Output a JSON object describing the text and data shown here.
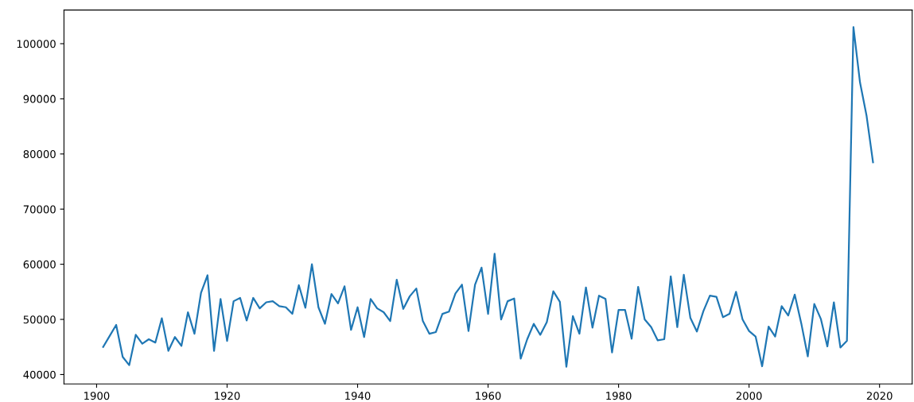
{
  "chart_data": {
    "type": "line",
    "x": [
      1901,
      1902,
      1903,
      1904,
      1905,
      1906,
      1907,
      1908,
      1909,
      1910,
      1911,
      1912,
      1913,
      1914,
      1915,
      1916,
      1917,
      1918,
      1919,
      1920,
      1921,
      1922,
      1923,
      1924,
      1925,
      1926,
      1927,
      1928,
      1929,
      1930,
      1931,
      1932,
      1933,
      1934,
      1935,
      1936,
      1937,
      1938,
      1939,
      1940,
      1941,
      1942,
      1943,
      1944,
      1945,
      1946,
      1947,
      1948,
      1949,
      1950,
      1951,
      1952,
      1953,
      1954,
      1955,
      1956,
      1957,
      1958,
      1959,
      1960,
      1961,
      1962,
      1963,
      1964,
      1965,
      1966,
      1967,
      1968,
      1969,
      1970,
      1971,
      1972,
      1973,
      1974,
      1975,
      1976,
      1977,
      1978,
      1979,
      1980,
      1981,
      1982,
      1983,
      1984,
      1985,
      1986,
      1987,
      1988,
      1989,
      1990,
      1991,
      1992,
      1993,
      1994,
      1995,
      1996,
      1997,
      1998,
      1999,
      2000,
      2001,
      2002,
      2003,
      2004,
      2005,
      2006,
      2007,
      2008,
      2009,
      2010,
      2011,
      2012,
      2013,
      2014,
      2015,
      2016,
      2017,
      2018,
      2019
    ],
    "series": [
      {
        "color": "#1f77b4",
        "values": [
          45000,
          47000,
          49000,
          43200,
          41700,
          47200,
          45600,
          46400,
          45800,
          50200,
          44300,
          46800,
          45200,
          51300,
          47400,
          54800,
          58000,
          44300,
          53700,
          46100,
          53300,
          53900,
          49800,
          53900,
          52000,
          53100,
          53300,
          52400,
          52200,
          51000,
          56200,
          52100,
          60000,
          52200,
          49200,
          54600,
          52900,
          56000,
          48100,
          52200,
          46800,
          53700,
          52000,
          51300,
          49700,
          57200,
          51900,
          54200,
          55600,
          49700,
          47400,
          47700,
          51000,
          51400,
          54700,
          56300,
          47900,
          56300,
          59400,
          51000,
          61900,
          50000,
          53300,
          53800,
          42900,
          46400,
          49200,
          47200,
          49500,
          55100,
          53200,
          41400,
          50600,
          47400,
          55800,
          48500,
          54300,
          53700,
          44000,
          51700,
          51700,
          46500,
          55900,
          50000,
          48600,
          46200,
          46400,
          57800,
          48600,
          58100,
          50300,
          47800,
          51500,
          54300,
          54100,
          50400,
          51000,
          55000,
          50000,
          47900,
          46900,
          41500,
          48700,
          46900,
          52400,
          50700,
          54500,
          49300,
          43300,
          52800,
          50100,
          45100,
          53100,
          44900,
          46100,
          103000,
          93000,
          87000,
          78500
        ]
      }
    ],
    "xlim": [
      1895,
      2025
    ],
    "xticks": [
      1900,
      1920,
      1940,
      1960,
      1980,
      2000,
      2020
    ],
    "ylim": [
      38300,
      106100
    ],
    "yticks": [
      40000,
      50000,
      60000,
      70000,
      80000,
      90000,
      100000
    ],
    "grid": false,
    "legend": false,
    "marker": "none",
    "line_style": "solid"
  }
}
